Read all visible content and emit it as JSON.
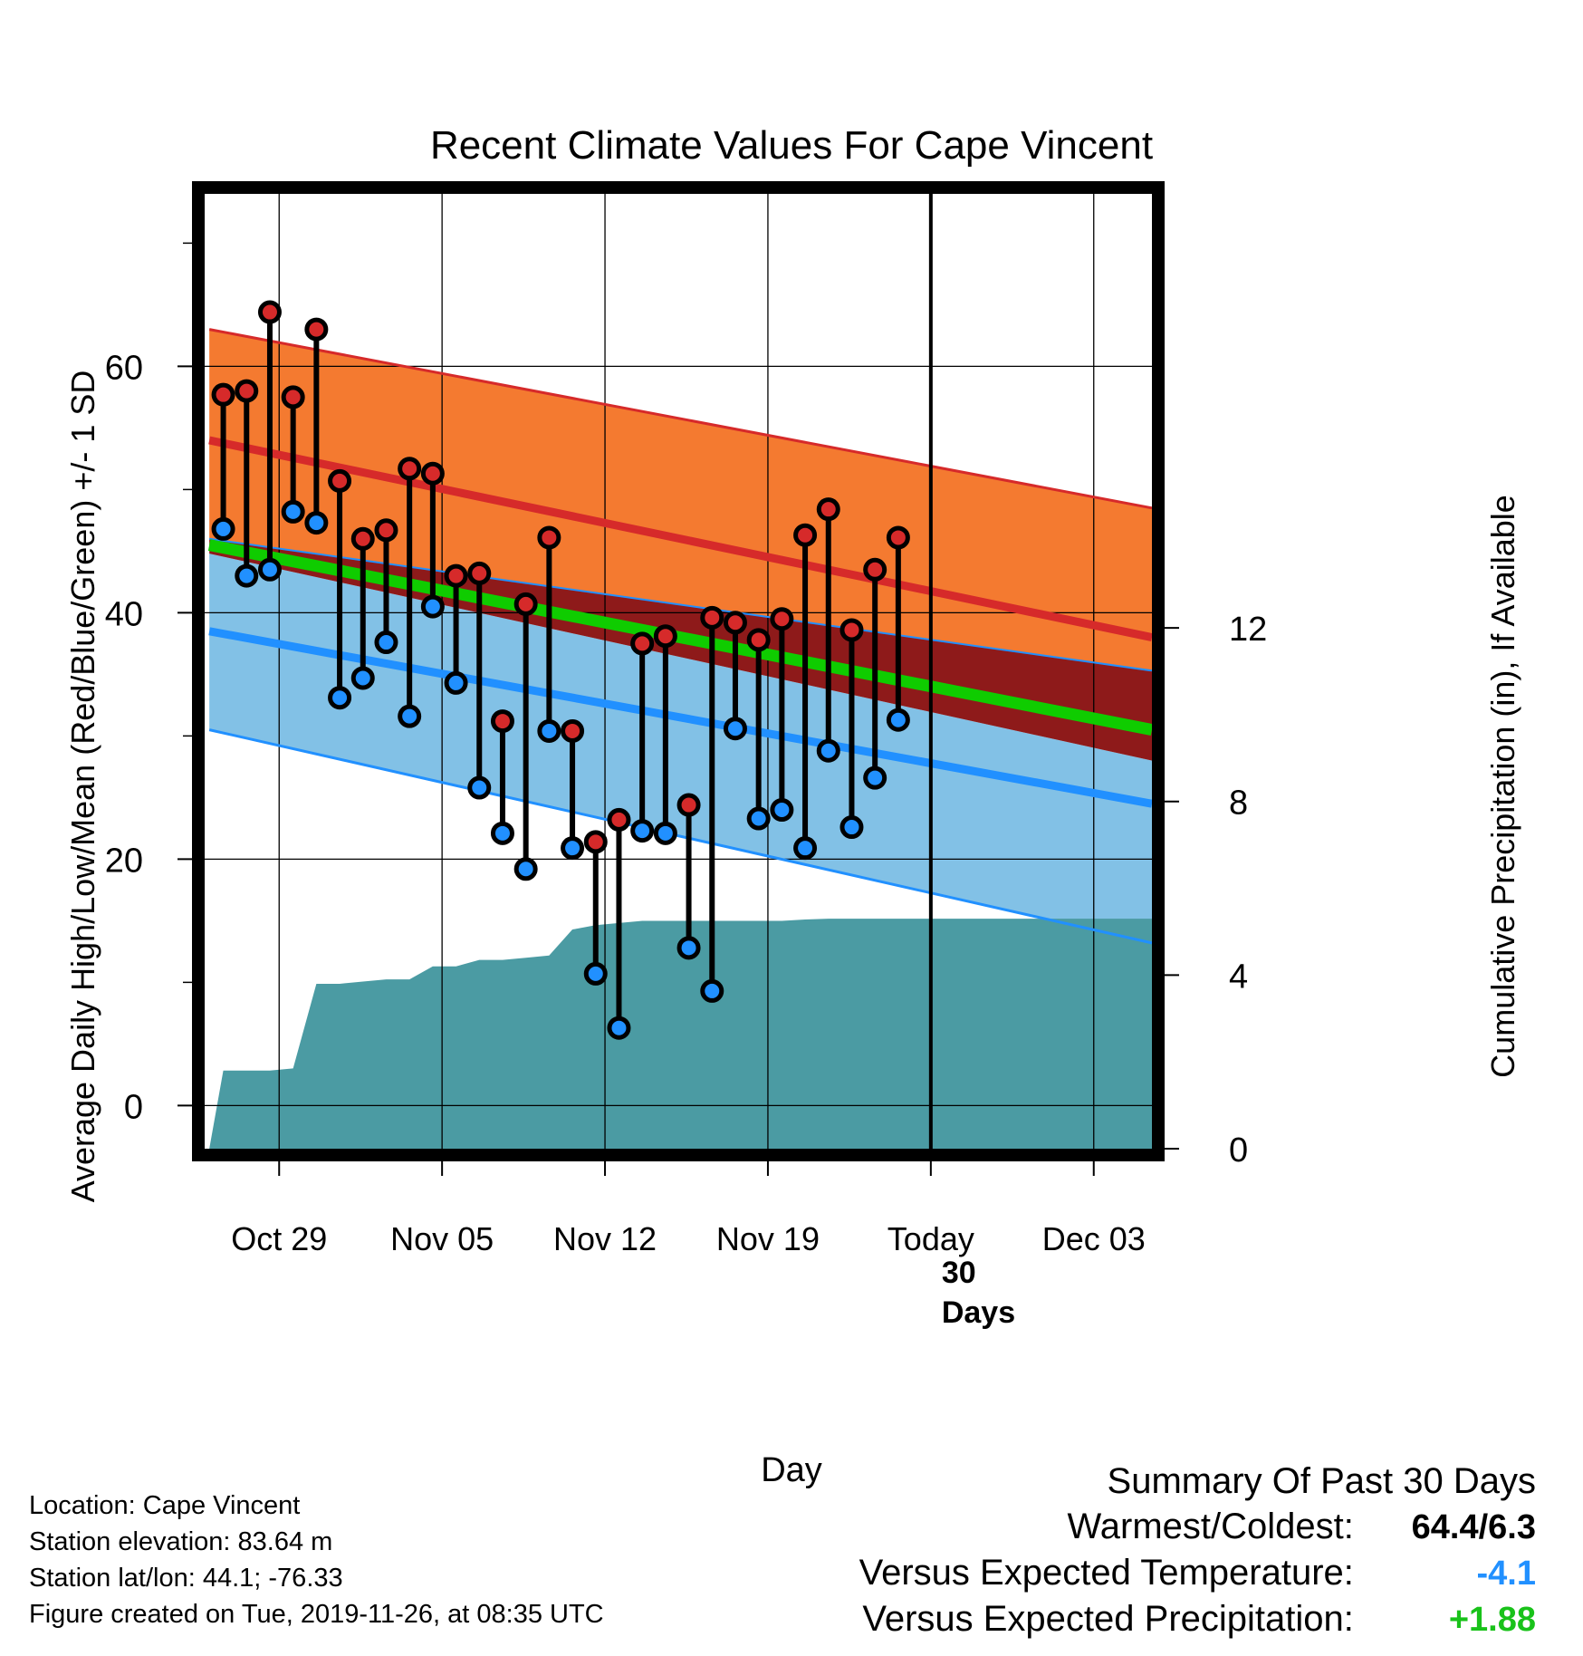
{
  "chart_data": {
    "type": "line",
    "title": "Recent Climate Values For Cape Vincent",
    "xlabel": "Day",
    "ylabel": "Average Daily High/Low/Mean (Red/Blue/Green) +/- 1 SD",
    "ylabel_right": "Cumulative Precipitation (in), If Available",
    "x_ticks": [
      "Oct 29",
      "Nov 05",
      "Nov 12",
      "Nov 19",
      "Today",
      "Dec 03"
    ],
    "x_tick_days": [
      3,
      10,
      17,
      24,
      31,
      38
    ],
    "xlim": [
      -0.2,
      40.5
    ],
    "ylim": [
      -3.5,
      74
    ],
    "y_ticks": [
      0,
      20,
      40,
      60
    ],
    "y2lim": [
      0,
      22
    ],
    "y2_ticks": [
      0,
      4,
      8,
      12
    ],
    "today_day": 31,
    "today_label_line1": "30",
    "today_label_line2": "Days",
    "normals": {
      "x": [
        0,
        40.5
      ],
      "high_plus_sd": [
        63,
        48.5
      ],
      "high_mean": [
        54,
        38
      ],
      "high_minus_sd": [
        46,
        35.3
      ],
      "mean": [
        45.5,
        30.5
      ],
      "low_plus_sd": [
        44.8,
        28
      ],
      "low_mean": [
        38.5,
        24.5
      ],
      "low_minus_sd": [
        30.5,
        13.2
      ]
    },
    "observed": {
      "days": [
        0.6,
        1.6,
        2.6,
        3.6,
        4.6,
        5.6,
        6.6,
        7.6,
        8.6,
        9.6,
        10.6,
        11.6,
        12.6,
        13.6,
        14.6,
        15.6,
        16.6,
        17.6,
        18.6,
        19.6,
        20.6,
        21.6,
        22.6,
        23.6,
        24.6,
        25.6,
        26.6,
        27.6,
        28.6,
        29.6
      ],
      "high": [
        57.7,
        58.0,
        64.4,
        57.5,
        63.0,
        50.7,
        46.0,
        46.7,
        51.7,
        51.3,
        43.0,
        43.2,
        31.2,
        40.7,
        46.1,
        30.4,
        21.4,
        23.2,
        37.5,
        38.1,
        24.4,
        39.6,
        39.2,
        37.8,
        39.5,
        46.3,
        48.4,
        38.6,
        43.5,
        46.1
      ],
      "low": [
        46.8,
        43.0,
        43.5,
        48.2,
        47.3,
        33.1,
        34.7,
        37.6,
        31.6,
        40.5,
        34.3,
        25.8,
        22.1,
        19.2,
        30.4,
        20.9,
        10.7,
        6.3,
        22.3,
        22.1,
        12.8,
        9.3,
        30.6,
        23.3,
        24.0,
        20.9,
        28.8,
        22.6,
        26.6,
        31.3
      ]
    },
    "precip": {
      "x": [
        0,
        0.6,
        1.6,
        2.6,
        3.6,
        4.6,
        5.6,
        6.6,
        7.6,
        8.6,
        9.6,
        10.6,
        11.6,
        12.6,
        13.6,
        14.6,
        15.6,
        16.6,
        17.6,
        18.6,
        19.6,
        20.6,
        21.6,
        22.6,
        23.6,
        24.6,
        25.6,
        26.6,
        27.6,
        28.6,
        29.6,
        40.5
      ],
      "values": [
        0,
        1.8,
        1.8,
        1.8,
        1.85,
        3.8,
        3.8,
        3.85,
        3.9,
        3.9,
        4.2,
        4.2,
        4.35,
        4.35,
        4.4,
        4.45,
        5.05,
        5.15,
        5.2,
        5.25,
        5.25,
        5.25,
        5.25,
        5.25,
        5.25,
        5.25,
        5.28,
        5.3,
        5.3,
        5.3,
        5.3,
        5.3
      ]
    }
  },
  "info": {
    "location": "Location: Cape Vincent",
    "elevation": "Station elevation: 83.64 m",
    "latlon": "Station lat/lon: 44.1; -76.33",
    "created": "Figure created on Tue, 2019-11-26, at 08:35 UTC"
  },
  "summary": {
    "title": "Summary Of Past 30 Days",
    "warmest_coldest_label": "Warmest/Coldest:",
    "warmest_coldest_value": "64.4/6.3",
    "temp_label": "Versus Expected Temperature:",
    "temp_value": "-4.1",
    "precip_label": "Versus Expected Precipitation:",
    "precip_value": "+1.88"
  },
  "colors": {
    "high_sd_band": "#f47a30",
    "high_line": "#d62a2a",
    "overlap_band": "#8e1a1a",
    "mean_line": "#0fcc00",
    "low_sd_band": "#82c1e6",
    "low_line": "#2190ff",
    "precip_fill": "#4b9ba3",
    "high_marker": "#d62a2a",
    "low_marker": "#2190ff",
    "temp_value_color": "#2190ff",
    "precip_value_color": "#19c21a"
  }
}
